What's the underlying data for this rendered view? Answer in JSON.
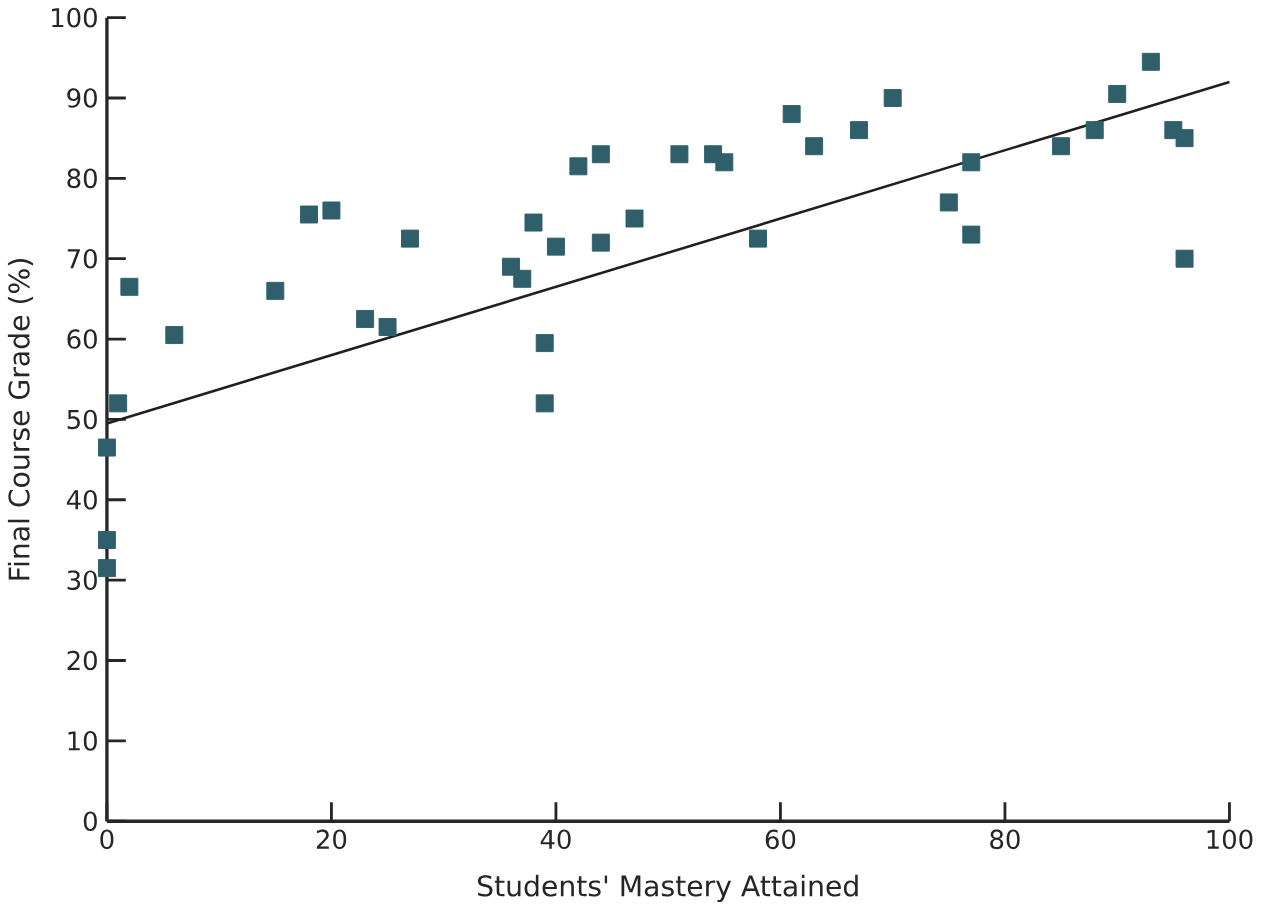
{
  "chart_data": {
    "type": "scatter",
    "xlabel": "Students' Mastery Attained",
    "ylabel": "Final Course Grade (%)",
    "xlim": [
      0,
      100
    ],
    "ylim": [
      0,
      100
    ],
    "xticks": [
      0,
      20,
      40,
      60,
      80,
      100
    ],
    "yticks": [
      0,
      10,
      20,
      30,
      40,
      50,
      60,
      70,
      80,
      90,
      100
    ],
    "marker": "square",
    "series": [
      {
        "color": "#2e5f6a",
        "x": [
          0,
          0,
          0,
          1,
          2,
          6,
          15,
          18,
          20,
          23,
          25,
          27,
          36,
          37,
          38,
          39,
          39,
          40,
          42,
          44,
          44,
          47,
          51,
          54,
          55,
          58,
          61,
          63,
          67,
          70,
          75,
          77,
          77,
          85,
          88,
          90,
          93,
          95,
          96,
          96
        ],
        "values": [
          46.5,
          35,
          31.5,
          52,
          66.5,
          60.5,
          66,
          75.5,
          76,
          62.5,
          61.5,
          72.5,
          69,
          67.5,
          74.5,
          59.5,
          52,
          71.5,
          81.5,
          83,
          72,
          75,
          83,
          83,
          82,
          72.5,
          88,
          84,
          86,
          90,
          77,
          82,
          73,
          84,
          86,
          90.5,
          94.5,
          86,
          85,
          70
        ]
      },
      {
        "type": "line",
        "marker": "none",
        "color": "#231f20",
        "x": [
          0,
          100
        ],
        "values": [
          49.5,
          92
        ]
      }
    ]
  }
}
